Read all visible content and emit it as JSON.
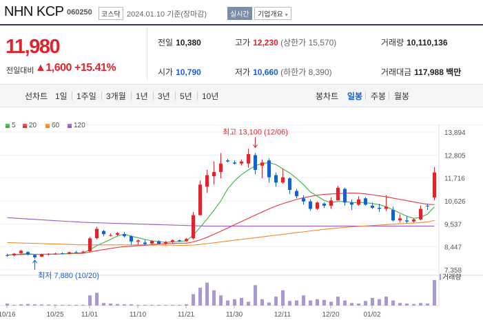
{
  "header": {
    "name": "NHN KCP",
    "code": "060250",
    "market": "코스닥",
    "date_text": "2024.01.10 기준(장마감)",
    "realtime": "실시간",
    "company_button": "기업개요",
    "company_chevron": "▾"
  },
  "price": {
    "current": "11,980",
    "change_label": "전일대비",
    "change_arrow": "▲",
    "change": "1,600",
    "change_pct": "+15.41%"
  },
  "stats": {
    "prev_label": "전일",
    "prev": "10,380",
    "high_label": "고가",
    "high": "12,230",
    "upper_limit_text": "(상한가 15,570)",
    "volume_label": "거래량",
    "volume": "10,110,136",
    "open_label": "시가",
    "open": "10,790",
    "low_label": "저가",
    "low": "10,660",
    "lower_limit_text": "(하한가 8,390)",
    "amount_label": "거래대금",
    "amount": "117,988",
    "amount_unit": "백만"
  },
  "periods": {
    "line_label": "선차트",
    "items": [
      "1일",
      "1주일",
      "3개월",
      "1년",
      "3년",
      "5년",
      "10년"
    ],
    "candle_label": "봉차트",
    "candle_items": [
      "일봉",
      "주봉",
      "월봉"
    ],
    "active_candle": "일봉"
  },
  "colors": {
    "up": "#e0242e",
    "down": "#1a5fc8",
    "ma5": "#3cb043",
    "ma20": "#e8333b",
    "ma60": "#f08a24",
    "ma120": "#9a59c4",
    "volume": "#a79ad1"
  },
  "chart_data": {
    "type": "candlestick",
    "legend": [
      "5",
      "20",
      "60",
      "120"
    ],
    "y_ticks": [
      13894,
      12805,
      11716,
      10626,
      9537,
      8447,
      7358
    ],
    "y_range": [
      7358,
      13894
    ],
    "x_ticks": [
      {
        "label": "10/16",
        "index": 0
      },
      {
        "label": "10/25",
        "index": 7
      },
      {
        "label": "11/01",
        "index": 12
      },
      {
        "label": "11/10",
        "index": 19
      },
      {
        "label": "11/21",
        "index": 26
      },
      {
        "label": "11/30",
        "index": 33
      },
      {
        "label": "12/11",
        "index": 40
      },
      {
        "label": "12/20",
        "index": 47
      },
      {
        "label": "01/02",
        "index": 53
      }
    ],
    "high_annotation": {
      "text": "최고 13,100 (12/06)",
      "index": 36,
      "value": 13100
    },
    "low_annotation": {
      "text": "최저 7,880 (10/20)",
      "index": 4,
      "value": 7880
    },
    "volume_label": "거래량",
    "candles": [
      {
        "o": 8050,
        "h": 8120,
        "l": 7980,
        "c": 8020
      },
      {
        "o": 8040,
        "h": 8160,
        "l": 8000,
        "c": 8120
      },
      {
        "o": 8150,
        "h": 8300,
        "l": 8100,
        "c": 8260
      },
      {
        "o": 8200,
        "h": 8230,
        "l": 8040,
        "c": 8080
      },
      {
        "o": 8060,
        "h": 8100,
        "l": 7880,
        "c": 7950
      },
      {
        "o": 7980,
        "h": 8120,
        "l": 7960,
        "c": 8090
      },
      {
        "o": 8090,
        "h": 8150,
        "l": 8030,
        "c": 8110
      },
      {
        "o": 8110,
        "h": 8170,
        "l": 8080,
        "c": 8130
      },
      {
        "o": 8140,
        "h": 8180,
        "l": 8090,
        "c": 8120
      },
      {
        "o": 8120,
        "h": 8220,
        "l": 8100,
        "c": 8190
      },
      {
        "o": 8190,
        "h": 8250,
        "l": 8150,
        "c": 8180
      },
      {
        "o": 8190,
        "h": 8260,
        "l": 8150,
        "c": 8220
      },
      {
        "o": 8240,
        "h": 8920,
        "l": 8200,
        "c": 8850
      },
      {
        "o": 8860,
        "h": 9400,
        "l": 8800,
        "c": 9300
      },
      {
        "o": 9200,
        "h": 9250,
        "l": 8950,
        "c": 9050
      },
      {
        "o": 9000,
        "h": 9080,
        "l": 8940,
        "c": 9000
      },
      {
        "o": 9020,
        "h": 9150,
        "l": 8980,
        "c": 9100
      },
      {
        "o": 9050,
        "h": 9150,
        "l": 8900,
        "c": 8950
      },
      {
        "o": 8950,
        "h": 9000,
        "l": 8550,
        "c": 8700
      },
      {
        "o": 8700,
        "h": 8800,
        "l": 8550,
        "c": 8750
      },
      {
        "o": 8650,
        "h": 8780,
        "l": 8520,
        "c": 8580
      },
      {
        "o": 8600,
        "h": 8760,
        "l": 8560,
        "c": 8720
      },
      {
        "o": 8720,
        "h": 8760,
        "l": 8560,
        "c": 8600
      },
      {
        "o": 8600,
        "h": 8720,
        "l": 8550,
        "c": 8680
      },
      {
        "o": 8680,
        "h": 8800,
        "l": 8620,
        "c": 8760
      },
      {
        "o": 8760,
        "h": 8800,
        "l": 8680,
        "c": 8720
      },
      {
        "o": 8720,
        "h": 8860,
        "l": 8680,
        "c": 8820
      },
      {
        "o": 8850,
        "h": 10100,
        "l": 8800,
        "c": 9950
      },
      {
        "o": 9950,
        "h": 11600,
        "l": 9950,
        "c": 11400
      },
      {
        "o": 11300,
        "h": 12100,
        "l": 11000,
        "c": 11850
      },
      {
        "o": 11800,
        "h": 12500,
        "l": 11400,
        "c": 12000
      },
      {
        "o": 12000,
        "h": 12900,
        "l": 11700,
        "c": 12400
      },
      {
        "o": 12550,
        "h": 12620,
        "l": 12450,
        "c": 12500
      },
      {
        "o": 12450,
        "h": 12550,
        "l": 12350,
        "c": 12400
      },
      {
        "o": 12400,
        "h": 12600,
        "l": 12300,
        "c": 12500
      },
      {
        "o": 12400,
        "h": 13100,
        "l": 12200,
        "c": 12850
      },
      {
        "o": 12800,
        "h": 12900,
        "l": 11900,
        "c": 12100
      },
      {
        "o": 12300,
        "h": 12600,
        "l": 11700,
        "c": 12450
      },
      {
        "o": 12550,
        "h": 12650,
        "l": 11500,
        "c": 11750
      },
      {
        "o": 11850,
        "h": 11980,
        "l": 11300,
        "c": 11500
      },
      {
        "o": 11500,
        "h": 12150,
        "l": 11450,
        "c": 11750
      },
      {
        "o": 11700,
        "h": 11750,
        "l": 10950,
        "c": 11150
      },
      {
        "o": 11100,
        "h": 11200,
        "l": 10750,
        "c": 10850
      },
      {
        "o": 10750,
        "h": 10900,
        "l": 10450,
        "c": 10600
      },
      {
        "o": 10600,
        "h": 10700,
        "l": 10150,
        "c": 10250
      },
      {
        "o": 10250,
        "h": 10600,
        "l": 10200,
        "c": 10550
      },
      {
        "o": 10500,
        "h": 10550,
        "l": 10300,
        "c": 10400
      },
      {
        "o": 10400,
        "h": 10800,
        "l": 10250,
        "c": 10650
      },
      {
        "o": 10650,
        "h": 11350,
        "l": 10650,
        "c": 11250
      },
      {
        "o": 11200,
        "h": 11250,
        "l": 10400,
        "c": 10550
      },
      {
        "o": 10550,
        "h": 10700,
        "l": 10200,
        "c": 10450
      },
      {
        "o": 10450,
        "h": 10850,
        "l": 10400,
        "c": 10700
      },
      {
        "o": 10750,
        "h": 10800,
        "l": 10400,
        "c": 10450
      },
      {
        "o": 10400,
        "h": 10550,
        "l": 10250,
        "c": 10300
      },
      {
        "o": 10300,
        "h": 10500,
        "l": 10100,
        "c": 10250
      },
      {
        "o": 10250,
        "h": 10900,
        "l": 10150,
        "c": 10350
      },
      {
        "o": 10200,
        "h": 10350,
        "l": 9650,
        "c": 9700
      },
      {
        "o": 9700,
        "h": 10000,
        "l": 9600,
        "c": 9800
      },
      {
        "o": 9700,
        "h": 9900,
        "l": 9550,
        "c": 9650
      },
      {
        "o": 9650,
        "h": 9800,
        "l": 9600,
        "c": 9750
      },
      {
        "o": 9750,
        "h": 10400,
        "l": 9700,
        "c": 10250
      },
      {
        "o": 10400,
        "h": 10500,
        "l": 10200,
        "c": 10380
      },
      {
        "o": 10790,
        "h": 12230,
        "l": 10660,
        "c": 11980
      }
    ],
    "ma5": [
      8050,
      8070,
      8110,
      8120,
      8090,
      8090,
      8090,
      8100,
      8110,
      8140,
      8150,
      8170,
      8310,
      8500,
      8650,
      8800,
      8960,
      9050,
      8950,
      8880,
      8800,
      8730,
      8690,
      8660,
      8690,
      8700,
      8730,
      9010,
      9370,
      9770,
      10180,
      10630,
      11200,
      11580,
      11880,
      12100,
      12300,
      12400,
      12450,
      12350,
      12150,
      11950,
      11700,
      11400,
      11050,
      10850,
      10650,
      10550,
      10600,
      10600,
      10550,
      10550,
      10550,
      10500,
      10450,
      10350,
      10200,
      10050,
      9900,
      9800,
      9850,
      10000,
      10350
    ],
    "ma20": [
      8060,
      8070,
      8080,
      8090,
      8090,
      8090,
      8100,
      8100,
      8110,
      8120,
      8130,
      8140,
      8200,
      8260,
      8320,
      8370,
      8420,
      8460,
      8480,
      8500,
      8520,
      8550,
      8580,
      8600,
      8610,
      8620,
      8620,
      8680,
      8780,
      8900,
      9040,
      9190,
      9340,
      9500,
      9650,
      9800,
      9950,
      10100,
      10250,
      10380,
      10500,
      10600,
      10700,
      10780,
      10840,
      10900,
      10940,
      10960,
      10970,
      10990,
      11000,
      10990,
      10960,
      10920,
      10870,
      10820,
      10760,
      10700,
      10640,
      10580,
      10520,
      10470,
      10450
    ],
    "ma60": [
      8650,
      8640,
      8630,
      8620,
      8610,
      8600,
      8590,
      8580,
      8570,
      8560,
      8550,
      8540,
      8540,
      8540,
      8540,
      8540,
      8540,
      8540,
      8540,
      8540,
      8540,
      8530,
      8530,
      8530,
      8530,
      8520,
      8520,
      8530,
      8560,
      8600,
      8640,
      8680,
      8720,
      8760,
      8800,
      8840,
      8880,
      8920,
      8960,
      9000,
      9040,
      9080,
      9120,
      9160,
      9200,
      9240,
      9280,
      9310,
      9340,
      9370,
      9400,
      9420,
      9440,
      9460,
      9480,
      9500,
      9520,
      9540,
      9560,
      9580,
      9600,
      9630,
      9700
    ],
    "ma120": [
      9830,
      9810,
      9790,
      9770,
      9750,
      9730,
      9710,
      9690,
      9670,
      9650,
      9630,
      9610,
      9600,
      9590,
      9580,
      9570,
      9560,
      9550,
      9540,
      9530,
      9520,
      9510,
      9500,
      9490,
      9480,
      9470,
      9460,
      9450,
      9440,
      9430,
      9430,
      9430,
      9430,
      9430,
      9430,
      9430,
      9430,
      9430,
      9430,
      9430,
      9430,
      9430,
      9430,
      9430,
      9430,
      9430,
      9430,
      9430,
      9430,
      9430,
      9430,
      9430,
      9430,
      9430,
      9430,
      9430,
      9430,
      9430,
      9430,
      9430,
      9430,
      9430,
      9430
    ],
    "volume": [
      8,
      0,
      5,
      6,
      5,
      4,
      4,
      3,
      2,
      2,
      1,
      3,
      40,
      50,
      10,
      8,
      6,
      5,
      5,
      2,
      3,
      2,
      2,
      2,
      2,
      2,
      5,
      45,
      70,
      90,
      60,
      40,
      20,
      25,
      30,
      15,
      80,
      25,
      12,
      35,
      60,
      18,
      20,
      40,
      20,
      25,
      22,
      15,
      35,
      20,
      10,
      8,
      18,
      30,
      25,
      35,
      20,
      10,
      8,
      6,
      10,
      8,
      100
    ]
  }
}
